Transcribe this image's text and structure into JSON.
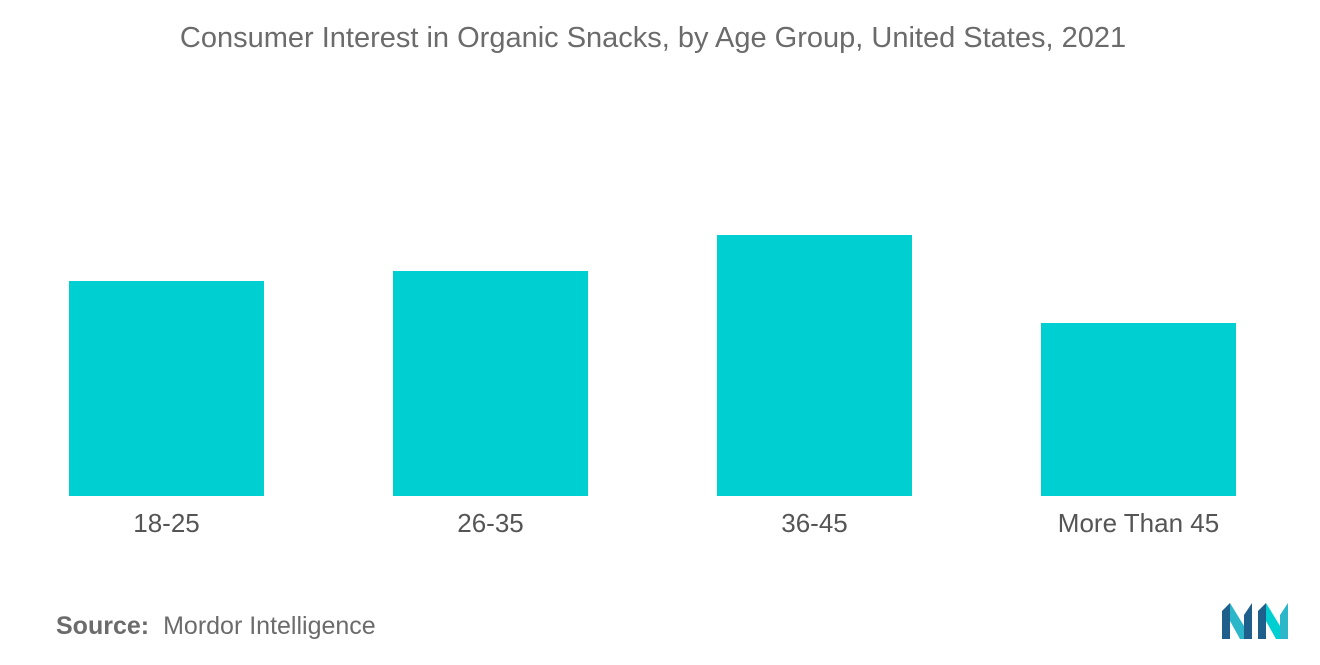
{
  "title": "Consumer Interest in Organic Snacks, by Age Group, United States, 2021",
  "source": {
    "label": "Source:",
    "value": "Mordor Intelligence"
  },
  "logo": {
    "name": "mordor-intelligence-logo",
    "colors": [
      "#1f5f8b",
      "#2bb6c9",
      "#00cfd1"
    ]
  },
  "chart_data": {
    "type": "bar",
    "title": "Consumer Interest in Organic Snacks, by Age Group, United States, 2021",
    "categories": [
      "18-25",
      "26-35",
      "36-45",
      "More Than 45"
    ],
    "values": [
      215,
      225,
      261,
      173
    ],
    "value_note": "relative values estimated from bar heights; no y-axis shown",
    "ylim": [
      0,
      300
    ],
    "grid": false,
    "legend": "none",
    "xlabel": "",
    "ylabel": "",
    "colors": {
      "bar": "#00cfd1",
      "tick_text": "#555555"
    }
  }
}
